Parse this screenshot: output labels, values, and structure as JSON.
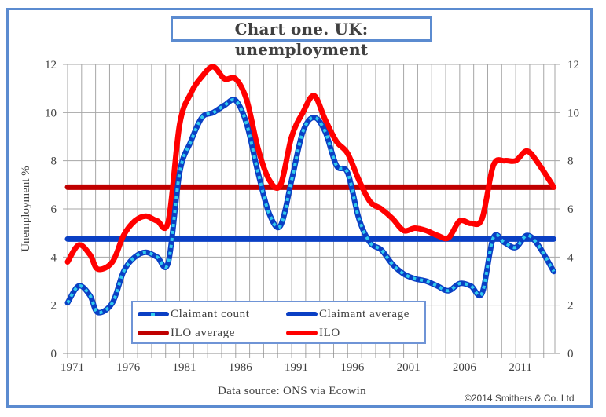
{
  "chart_data": {
    "type": "line",
    "title": "Chart one. UK: unemployment",
    "ylabel": "Unemployment %",
    "xlabel": "",
    "source": "Data source: ONS via Ecowin",
    "copyright": "©2014 Smithers & Co. Ltd",
    "xlim": [
      1971,
      2014.5
    ],
    "ylim": [
      0,
      12
    ],
    "x_tick_labels": [
      "1971",
      "1976",
      "1981",
      "1986",
      "1991",
      "1996",
      "2001",
      "2006",
      "2011"
    ],
    "y_tick_labels": [
      "0",
      "2",
      "4",
      "6",
      "8",
      "10",
      "12"
    ],
    "grid": true,
    "legend_position": "bottom-left",
    "series": [
      {
        "name": "Claimant count",
        "color": "#0a3fc4",
        "marker_color": "#33ccee",
        "x": [
          1971,
          1972,
          1973,
          1973.7,
          1975,
          1976,
          1977,
          1978,
          1979,
          1980,
          1981,
          1982,
          1983,
          1984,
          1985,
          1986,
          1987,
          1988,
          1989,
          1990,
          1991,
          1992,
          1993,
          1994,
          1995,
          1996,
          1997,
          1998,
          1999,
          2000,
          2001,
          2002,
          2003,
          2004,
          2005,
          2006,
          2007,
          2008,
          2009,
          2010,
          2011,
          2012,
          2013,
          2014.4
        ],
        "values": [
          2.1,
          2.8,
          2.4,
          1.7,
          2.1,
          3.4,
          4.0,
          4.2,
          4.0,
          3.8,
          7.5,
          8.8,
          9.8,
          10.0,
          10.3,
          10.5,
          9.5,
          7.5,
          5.8,
          5.3,
          7.2,
          9.2,
          9.8,
          9.2,
          7.8,
          7.5,
          5.6,
          4.6,
          4.3,
          3.7,
          3.3,
          3.1,
          3.0,
          2.8,
          2.6,
          2.9,
          2.8,
          2.5,
          4.8,
          4.6,
          4.4,
          4.9,
          4.5,
          3.4
        ]
      },
      {
        "name": "ILO",
        "color": "#ff0000",
        "x": [
          1971,
          1972,
          1973,
          1973.7,
          1975,
          1976,
          1977,
          1978,
          1979,
          1980,
          1981,
          1982,
          1983,
          1984,
          1985,
          1986,
          1987,
          1988,
          1989,
          1990,
          1991,
          1992,
          1993,
          1994,
          1995,
          1996,
          1997,
          1998,
          1999,
          2000,
          2001,
          2002,
          2003,
          2004,
          2005,
          2006,
          2007,
          2008,
          2009,
          2010,
          2011,
          2012,
          2013,
          2014.4
        ],
        "values": [
          3.8,
          4.5,
          4.1,
          3.5,
          3.8,
          4.9,
          5.5,
          5.7,
          5.5,
          5.5,
          9.5,
          10.8,
          11.5,
          11.9,
          11.4,
          11.4,
          10.5,
          8.5,
          7.2,
          7.0,
          9.0,
          10.0,
          10.7,
          9.7,
          8.8,
          8.3,
          7.2,
          6.3,
          6.0,
          5.6,
          5.1,
          5.2,
          5.1,
          4.9,
          4.8,
          5.5,
          5.4,
          5.6,
          7.8,
          8.0,
          8.0,
          8.4,
          7.9,
          6.9
        ]
      },
      {
        "name": "Claimant average",
        "color": "#0a3fc4",
        "x": [
          1971,
          2014.4
        ],
        "values": [
          4.75,
          4.75
        ]
      },
      {
        "name": "ILO average",
        "color": "#c00000",
        "x": [
          1971,
          2014.4
        ],
        "values": [
          6.9,
          6.9
        ]
      }
    ],
    "legend": [
      {
        "label": "Claimant count",
        "color": "#0a3fc4",
        "marker_color": "#33ccee"
      },
      {
        "label": "Claimant average",
        "color": "#0a3fc4"
      },
      {
        "label": "ILO average",
        "color": "#c00000"
      },
      {
        "label": "ILO",
        "color": "#ff0000"
      }
    ]
  }
}
